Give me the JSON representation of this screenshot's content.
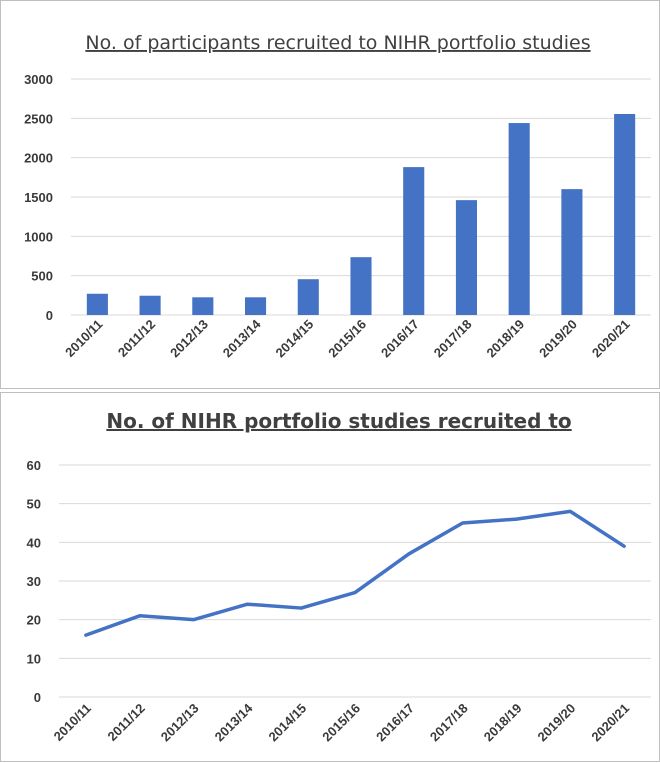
{
  "chart_data": [
    {
      "type": "bar",
      "title": "No. of participants recruited to NIHR portfolio studies",
      "xlabel": "",
      "ylabel": "",
      "categories": [
        "2010/11",
        "2011/12",
        "2012/13",
        "2013/14",
        "2014/15",
        "2015/16",
        "2016/17",
        "2017/18",
        "2018/19",
        "2019/20",
        "2020/21"
      ],
      "values": [
        270,
        245,
        225,
        225,
        455,
        735,
        1880,
        1460,
        2440,
        1600,
        2555
      ],
      "ylim": [
        0,
        3000
      ],
      "yticks": [
        "0",
        "500",
        "1000",
        "1500",
        "2000",
        "2500",
        "3000"
      ],
      "grid": true,
      "legend": "none",
      "color": "#4472c4"
    },
    {
      "type": "line",
      "title": "No. of NIHR portfolio studies recruited to",
      "xlabel": "",
      "ylabel": "",
      "categories": [
        "2010/11",
        "2011/12",
        "2012/13",
        "2013/14",
        "2014/15",
        "2015/16",
        "2016/17",
        "2017/18",
        "2018/19",
        "2019/20",
        "2020/21"
      ],
      "values": [
        16,
        21,
        20,
        24,
        23,
        27,
        37,
        45,
        46,
        48,
        39
      ],
      "ylim": [
        0,
        60
      ],
      "yticks": [
        "0",
        "10",
        "20",
        "30",
        "40",
        "50",
        "60"
      ],
      "grid": true,
      "legend": "none",
      "color": "#4472c4"
    }
  ]
}
